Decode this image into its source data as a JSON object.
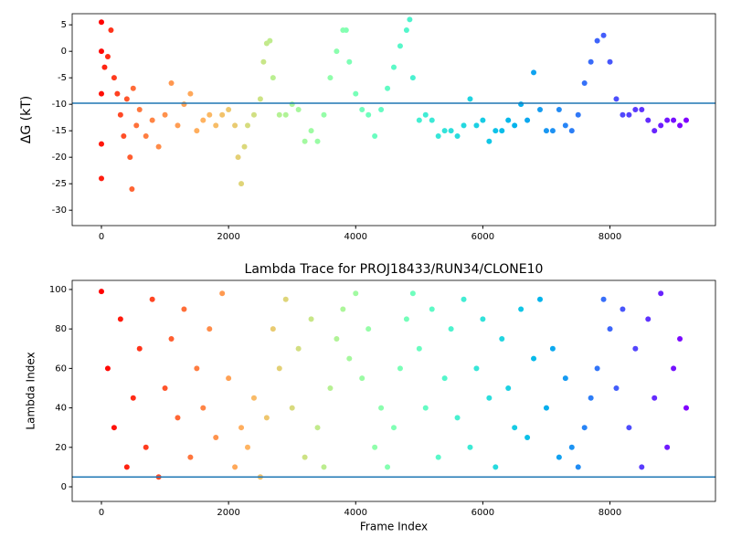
{
  "chart_data": [
    {
      "type": "scatter",
      "ylabel": "ΔG (kT)",
      "colormap": "rainbow_r",
      "hline": -9.8,
      "hline_color": "#1f77b4",
      "xlim": [
        -460,
        9660
      ],
      "xticks": [
        0,
        2000,
        4000,
        6000,
        8000
      ],
      "ylim": [
        -32.9,
        7.1
      ],
      "yticks": [
        5,
        0,
        -5,
        -10,
        -15,
        -20,
        -25,
        -30
      ],
      "x": [
        0,
        0,
        0,
        0,
        0,
        50,
        100,
        150,
        200,
        250,
        300,
        350,
        400,
        450,
        480,
        500,
        550,
        600,
        700,
        800,
        900,
        1000,
        1100,
        1200,
        1300,
        1400,
        1500,
        1600,
        1700,
        1800,
        1900,
        2000,
        2100,
        2150,
        2200,
        2250,
        2300,
        2400,
        2500,
        2550,
        2600,
        2650,
        2700,
        2800,
        2900,
        3000,
        3100,
        3200,
        3300,
        3400,
        3500,
        3600,
        3700,
        3800,
        3850,
        3900,
        4000,
        4100,
        4200,
        4300,
        4400,
        4500,
        4600,
        4700,
        4800,
        4850,
        4900,
        5000,
        5100,
        5200,
        5300,
        5400,
        5500,
        5600,
        5700,
        5800,
        5900,
        6000,
        6100,
        6200,
        6300,
        6400,
        6500,
        6600,
        6700,
        6800,
        6900,
        7000,
        7100,
        7200,
        7300,
        7400,
        7500,
        7600,
        7700,
        7800,
        7900,
        8000,
        8100,
        8200,
        8300,
        8400,
        8500,
        8600,
        8700,
        8800,
        8900,
        9000,
        9100,
        9200
      ],
      "values": [
        5.5,
        0,
        -8,
        -17.5,
        -24,
        -3,
        -1,
        4,
        -5,
        -8,
        -12,
        -16,
        -9,
        -20,
        -26,
        -7,
        -14,
        -11,
        -16,
        -13,
        -18,
        -12,
        -6,
        -14,
        -10,
        -8,
        -15,
        -13,
        -12,
        -14,
        -12,
        -11,
        -14,
        -20,
        -25,
        -18,
        -14,
        -12,
        -9,
        -2,
        1.5,
        2,
        -5,
        -12,
        -12,
        -10,
        -11,
        -17,
        -15,
        -17,
        -12,
        -5,
        0,
        4,
        4,
        -2,
        -8,
        -11,
        -12,
        -16,
        -11,
        -7,
        -3,
        1,
        4,
        6,
        -5,
        -13,
        -12,
        -13,
        -16,
        -15,
        -15,
        -16,
        -14,
        -9,
        -14,
        -13,
        -17,
        -15,
        -15,
        -13,
        -14,
        -10,
        -13,
        -4,
        -11,
        -15,
        -15,
        -11,
        -14,
        -15,
        -12,
        -6,
        -2,
        2,
        3,
        -2,
        -9,
        -12,
        -12,
        -11,
        -11,
        -13,
        -15,
        -14,
        -13,
        -13,
        -14,
        -13
      ]
    },
    {
      "type": "scatter",
      "title": "Lambda Trace for PROJ18433/RUN34/CLONE10",
      "xlabel": "Frame Index",
      "ylabel": "Lambda Index",
      "colormap": "rainbow_r",
      "hline": 5,
      "hline_color": "#1f77b4",
      "xlim": [
        -460,
        9660
      ],
      "xticks": [
        0,
        2000,
        4000,
        6000,
        8000
      ],
      "ylim": [
        -7.4,
        104.6
      ],
      "yticks": [
        0,
        20,
        40,
        60,
        80,
        100
      ],
      "x": [
        0,
        100,
        200,
        300,
        400,
        500,
        600,
        700,
        800,
        900,
        1000,
        1100,
        1200,
        1300,
        1400,
        1500,
        1600,
        1700,
        1800,
        1900,
        2000,
        2100,
        2200,
        2300,
        2400,
        2500,
        2600,
        2700,
        2800,
        2900,
        3000,
        3100,
        3200,
        3300,
        3400,
        3500,
        3600,
        3700,
        3800,
        3900,
        4000,
        4100,
        4200,
        4300,
        4400,
        4500,
        4600,
        4700,
        4800,
        4900,
        5000,
        5100,
        5200,
        5300,
        5400,
        5500,
        5600,
        5700,
        5800,
        5900,
        6000,
        6100,
        6200,
        6300,
        6400,
        6500,
        6600,
        6700,
        6800,
        6900,
        7000,
        7100,
        7200,
        7300,
        7400,
        7500,
        7600,
        7700,
        7800,
        7900,
        8000,
        8100,
        8200,
        8300,
        8400,
        8500,
        8600,
        8700,
        8800,
        8900,
        9000,
        9100,
        9200
      ],
      "values": [
        99,
        60,
        30,
        85,
        10,
        45,
        70,
        20,
        95,
        5,
        50,
        75,
        35,
        90,
        15,
        60,
        40,
        80,
        25,
        98,
        55,
        10,
        30,
        20,
        45,
        5,
        35,
        80,
        60,
        95,
        40,
        70,
        15,
        85,
        30,
        10,
        50,
        75,
        90,
        65,
        98,
        55,
        80,
        20,
        40,
        10,
        30,
        60,
        85,
        98,
        70,
        40,
        90,
        15,
        55,
        80,
        35,
        95,
        20,
        60,
        85,
        45,
        10,
        75,
        50,
        30,
        90,
        25,
        65,
        95,
        40,
        70,
        15,
        55,
        20,
        10,
        30,
        45,
        60,
        95,
        80,
        50,
        90,
        30,
        70,
        10,
        85,
        45,
        98,
        20,
        60,
        75,
        40
      ]
    }
  ]
}
